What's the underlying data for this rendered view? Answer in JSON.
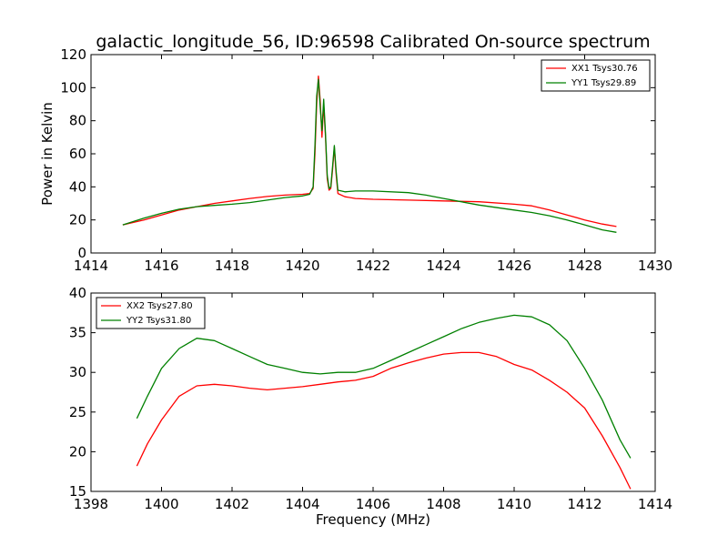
{
  "chart_data": [
    {
      "type": "line",
      "title": "galactic_longitude_56, ID:96598 Calibrated On-source spectrum",
      "xlabel": "",
      "ylabel": "Power in Kelvin",
      "xlim": [
        1414,
        1430
      ],
      "ylim": [
        0,
        120
      ],
      "xticks": [
        1414,
        1416,
        1418,
        1420,
        1422,
        1424,
        1426,
        1428,
        1430
      ],
      "yticks": [
        0,
        20,
        40,
        60,
        80,
        100,
        120
      ],
      "grid": false,
      "legend_position": "top-right",
      "series": [
        {
          "name": "XX1 Tsys30.76",
          "color": "#ff0000",
          "points": [
            [
              1414.9,
              17
            ],
            [
              1415.5,
              20
            ],
            [
              1416.0,
              23
            ],
            [
              1416.5,
              26
            ],
            [
              1417.0,
              28
            ],
            [
              1417.5,
              30
            ],
            [
              1418.0,
              31.5
            ],
            [
              1418.5,
              33
            ],
            [
              1419.0,
              34.2
            ],
            [
              1419.5,
              35
            ],
            [
              1420.0,
              35.5
            ],
            [
              1420.2,
              36
            ],
            [
              1420.3,
              39
            ],
            [
              1420.35,
              60
            ],
            [
              1420.4,
              90
            ],
            [
              1420.45,
              107
            ],
            [
              1420.5,
              92
            ],
            [
              1420.55,
              70
            ],
            [
              1420.6,
              90
            ],
            [
              1420.65,
              70
            ],
            [
              1420.7,
              45
            ],
            [
              1420.75,
              38
            ],
            [
              1420.8,
              39
            ],
            [
              1420.85,
              50
            ],
            [
              1420.9,
              64
            ],
            [
              1420.95,
              48
            ],
            [
              1421.0,
              36
            ],
            [
              1421.2,
              34
            ],
            [
              1421.5,
              33
            ],
            [
              1422.0,
              32.5
            ],
            [
              1423.0,
              32
            ],
            [
              1424.0,
              31.5
            ],
            [
              1425.0,
              31
            ],
            [
              1426.0,
              29.5
            ],
            [
              1426.5,
              28.5
            ],
            [
              1427.0,
              26
            ],
            [
              1427.5,
              23
            ],
            [
              1428.0,
              20
            ],
            [
              1428.5,
              17.5
            ],
            [
              1428.9,
              16
            ]
          ]
        },
        {
          "name": "YY1 Tsys29.89",
          "color": "#008000",
          "points": [
            [
              1414.9,
              17
            ],
            [
              1415.5,
              21
            ],
            [
              1416.0,
              24
            ],
            [
              1416.5,
              26.5
            ],
            [
              1417.0,
              28
            ],
            [
              1417.5,
              28.8
            ],
            [
              1418.0,
              29.5
            ],
            [
              1418.5,
              30.5
            ],
            [
              1419.0,
              32
            ],
            [
              1419.5,
              33.5
            ],
            [
              1420.0,
              34.5
            ],
            [
              1420.2,
              35.5
            ],
            [
              1420.3,
              40
            ],
            [
              1420.35,
              65
            ],
            [
              1420.4,
              95
            ],
            [
              1420.45,
              105
            ],
            [
              1420.5,
              88
            ],
            [
              1420.55,
              74
            ],
            [
              1420.6,
              93
            ],
            [
              1420.65,
              72
            ],
            [
              1420.7,
              47
            ],
            [
              1420.75,
              39
            ],
            [
              1420.8,
              40
            ],
            [
              1420.85,
              52
            ],
            [
              1420.9,
              65
            ],
            [
              1420.95,
              50
            ],
            [
              1421.0,
              38
            ],
            [
              1421.2,
              37
            ],
            [
              1421.5,
              37.5
            ],
            [
              1422.0,
              37.5
            ],
            [
              1423.0,
              36.5
            ],
            [
              1423.5,
              35
            ],
            [
              1424.0,
              33
            ],
            [
              1424.5,
              31
            ],
            [
              1425.0,
              29
            ],
            [
              1426.0,
              26
            ],
            [
              1426.5,
              24.5
            ],
            [
              1427.0,
              22.5
            ],
            [
              1427.5,
              20
            ],
            [
              1428.0,
              17
            ],
            [
              1428.5,
              14
            ],
            [
              1428.9,
              12.5
            ]
          ]
        }
      ]
    },
    {
      "type": "line",
      "title": "",
      "xlabel": "Frequency (MHz)",
      "ylabel": "",
      "xlim": [
        1398,
        1414
      ],
      "ylim": [
        15,
        40
      ],
      "xticks": [
        1398,
        1400,
        1402,
        1404,
        1406,
        1408,
        1410,
        1412,
        1414
      ],
      "yticks": [
        15,
        20,
        25,
        30,
        35,
        40
      ],
      "grid": false,
      "legend_position": "top-left",
      "series": [
        {
          "name": "XX2 Tsys27.80",
          "color": "#ff0000",
          "points": [
            [
              1399.3,
              18.2
            ],
            [
              1399.6,
              21
            ],
            [
              1400.0,
              24
            ],
            [
              1400.5,
              27
            ],
            [
              1401.0,
              28.3
            ],
            [
              1401.5,
              28.5
            ],
            [
              1402.0,
              28.3
            ],
            [
              1402.5,
              28
            ],
            [
              1403.0,
              27.8
            ],
            [
              1403.5,
              28
            ],
            [
              1404.0,
              28.2
            ],
            [
              1404.5,
              28.5
            ],
            [
              1405.0,
              28.8
            ],
            [
              1405.5,
              29
            ],
            [
              1406.0,
              29.5
            ],
            [
              1406.5,
              30.5
            ],
            [
              1407.0,
              31.2
            ],
            [
              1407.5,
              31.8
            ],
            [
              1408.0,
              32.3
            ],
            [
              1408.5,
              32.5
            ],
            [
              1409.0,
              32.5
            ],
            [
              1409.5,
              32
            ],
            [
              1410.0,
              31
            ],
            [
              1410.5,
              30.3
            ],
            [
              1411.0,
              29
            ],
            [
              1411.5,
              27.5
            ],
            [
              1412.0,
              25.5
            ],
            [
              1412.5,
              22
            ],
            [
              1413.0,
              18
            ],
            [
              1413.3,
              15.3
            ]
          ]
        },
        {
          "name": "YY2 Tsys31.80",
          "color": "#008000",
          "points": [
            [
              1399.3,
              24.2
            ],
            [
              1399.6,
              27
            ],
            [
              1400.0,
              30.5
            ],
            [
              1400.5,
              33
            ],
            [
              1401.0,
              34.3
            ],
            [
              1401.5,
              34
            ],
            [
              1402.0,
              33
            ],
            [
              1402.5,
              32
            ],
            [
              1403.0,
              31
            ],
            [
              1403.5,
              30.5
            ],
            [
              1404.0,
              30
            ],
            [
              1404.5,
              29.8
            ],
            [
              1405.0,
              30
            ],
            [
              1405.5,
              30
            ],
            [
              1406.0,
              30.5
            ],
            [
              1406.5,
              31.5
            ],
            [
              1407.0,
              32.5
            ],
            [
              1407.5,
              33.5
            ],
            [
              1408.0,
              34.5
            ],
            [
              1408.5,
              35.5
            ],
            [
              1409.0,
              36.3
            ],
            [
              1409.5,
              36.8
            ],
            [
              1410.0,
              37.2
            ],
            [
              1410.5,
              37
            ],
            [
              1411.0,
              36
            ],
            [
              1411.5,
              34
            ],
            [
              1412.0,
              30.5
            ],
            [
              1412.5,
              26.5
            ],
            [
              1413.0,
              21.5
            ],
            [
              1413.3,
              19.2
            ]
          ]
        }
      ]
    }
  ]
}
